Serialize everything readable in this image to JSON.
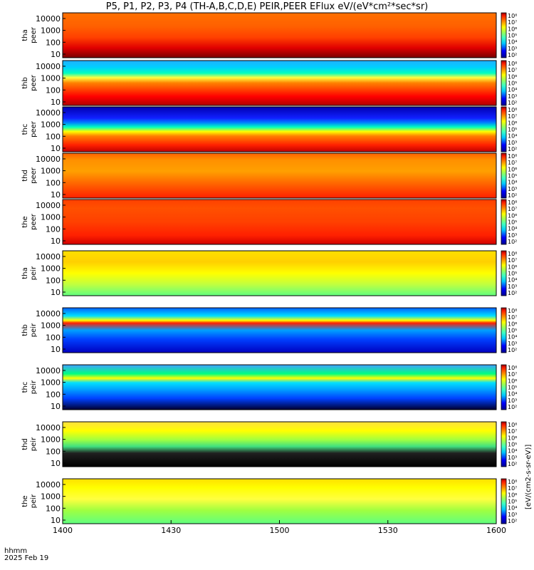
{
  "chart_data": {
    "type": "heatmap",
    "title": "P5, P1, P2, P3, P4 (TH-A,B,C,D,E) PEIR,PEER EFlux eV/(eV*cm²*sec*sr)",
    "x_ticks": [
      "1400",
      "1430",
      "1500",
      "1530",
      "1600"
    ],
    "x_range_minutes": [
      0,
      120
    ],
    "x_corner_labels": [
      "hhmm",
      "2025 Feb 19"
    ],
    "y_scale": "log",
    "y_ticks": [
      "10",
      "100",
      "1000",
      "10000"
    ],
    "y_range_eV": [
      5,
      30000
    ],
    "colorbar_scale": "log",
    "colorbar_ticks": [
      "10²",
      "10³",
      "10⁴",
      "10⁵",
      "10⁶",
      "10⁷",
      "10⁸"
    ],
    "colorbar_label": "[eV/(cm2-s-sr-eV)]",
    "panels": [
      {
        "probe": "tha",
        "species": "peer"
      },
      {
        "probe": "thb",
        "species": "peer"
      },
      {
        "probe": "thc",
        "species": "peer"
      },
      {
        "probe": "thd",
        "species": "peer"
      },
      {
        "probe": "the",
        "species": "peer"
      },
      {
        "probe": "tha",
        "species": "peir"
      },
      {
        "probe": "thb",
        "species": "peir"
      },
      {
        "probe": "thc",
        "species": "peir"
      },
      {
        "probe": "thd",
        "species": "peir"
      },
      {
        "probe": "the",
        "species": "peir"
      }
    ]
  }
}
